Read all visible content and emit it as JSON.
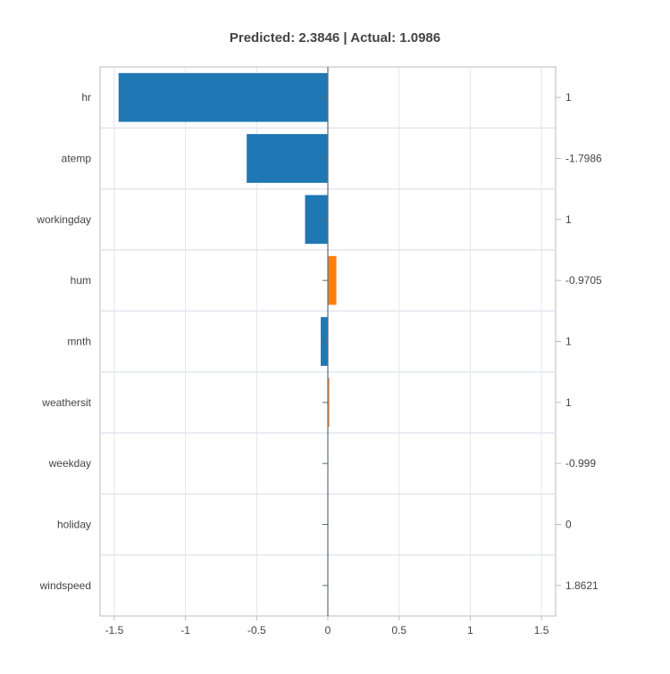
{
  "chart_data": {
    "type": "bar",
    "orientation": "horizontal",
    "title": "Predicted: 2.3846 | Actual: 1.0986",
    "xlabel": "",
    "ylabel": "",
    "xlim": [
      -1.6,
      1.6
    ],
    "x_ticks": [
      -1.5,
      -1,
      -0.5,
      0,
      0.5,
      1,
      1.5
    ],
    "x_tick_labels": [
      "-1.5",
      "-1",
      "-0.5",
      "0",
      "0.5",
      "1",
      "1.5"
    ],
    "grid": true,
    "categories": [
      "hr",
      "atemp",
      "workingday",
      "hum",
      "mnth",
      "weathersit",
      "weekday",
      "holiday",
      "windspeed"
    ],
    "values": [
      -1.47,
      -0.57,
      -0.16,
      0.06,
      -0.05,
      0.01,
      0.0,
      0.0,
      0.0
    ],
    "feature_values": [
      "1",
      "-1.7986",
      "1",
      "-0.9705",
      "1",
      "1",
      "-0.999",
      "0",
      "1.8621"
    ],
    "colors": {
      "negative": "#1f77b4",
      "positive": "#ff7f0e",
      "zero_line": "#5a6e80",
      "grid": "#e2e5ee",
      "axis": "#bbbbbb",
      "label_text": "#444444"
    }
  }
}
